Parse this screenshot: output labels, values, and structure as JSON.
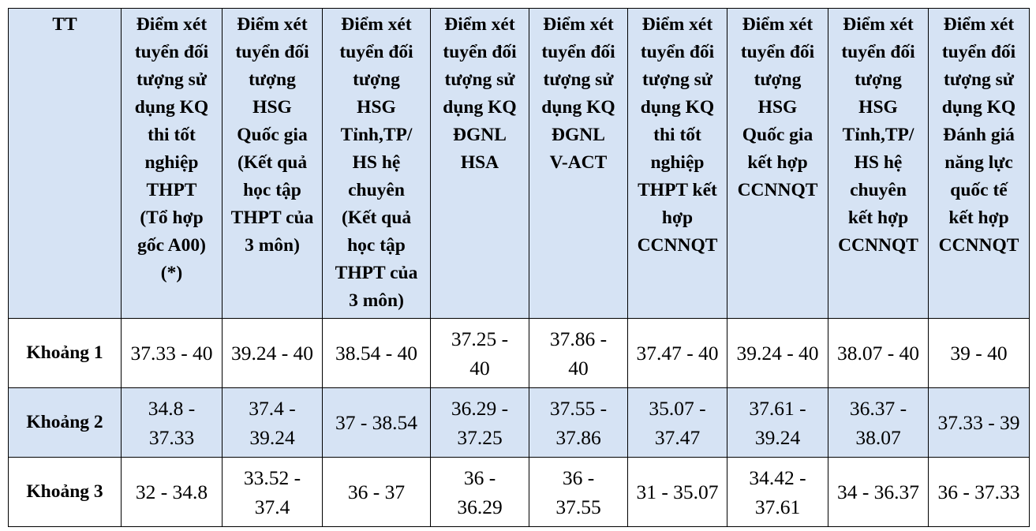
{
  "table": {
    "headers": [
      [
        "TT"
      ],
      [
        "Điểm xét",
        "tuyển đối",
        "tượng sử",
        "dụng KQ",
        "thi tốt",
        "nghiệp",
        "THPT",
        "(Tổ hợp",
        "gốc A00)",
        "(*)"
      ],
      [
        "Điểm xét",
        "tuyển đối",
        "tượng",
        "HSG",
        "Quốc gia",
        "(Kết quả",
        "học tập",
        "THPT của",
        "3 môn)"
      ],
      [
        "Điểm xét",
        "tuyển đối",
        "tượng",
        "HSG",
        "Tỉnh,TP/",
        "HS hệ",
        "chuyên",
        "(Kết quả",
        "học tập",
        "THPT của",
        "3 môn)"
      ],
      [
        "Điểm xét",
        "tuyển đối",
        "tượng sử",
        "dụng KQ",
        "ĐGNL",
        "HSA"
      ],
      [
        "Điểm xét",
        "tuyển đối",
        "tượng sử",
        "dụng KQ",
        "ĐGNL",
        "V-ACT"
      ],
      [
        "Điểm xét",
        "tuyển đối",
        "tượng sử",
        "dụng KQ",
        "thi tốt",
        "nghiệp",
        "THPT kết",
        "hợp",
        "CCNNQT"
      ],
      [
        "Điểm xét",
        "tuyển đối",
        "tượng",
        "HSG",
        "Quốc gia",
        "kết hợp",
        "CCNNQT"
      ],
      [
        "Điểm xét",
        "tuyển đối",
        "tượng",
        "HSG",
        "Tỉnh,TP/",
        "HS hệ",
        "chuyên",
        "kết hợp",
        "CCNNQT"
      ],
      [
        "Điểm xét",
        "tuyển đối",
        "tượng sử",
        "dụng KQ",
        "Đánh giá",
        "năng lực",
        "quốc tế",
        "kết hợp",
        "CCNNQT"
      ]
    ],
    "rows": [
      {
        "label": "Khoảng 1",
        "cells": [
          [
            "37.33 - 40"
          ],
          [
            "39.24 - 40"
          ],
          [
            "38.54 - 40"
          ],
          [
            "37.25 -",
            "40"
          ],
          [
            "37.86 -",
            "40"
          ],
          [
            "37.47 - 40"
          ],
          [
            "39.24 - 40"
          ],
          [
            "38.07 - 40"
          ],
          [
            "39 - 40"
          ]
        ]
      },
      {
        "label": "Khoảng 2",
        "cells": [
          [
            "34.8 -",
            "37.33"
          ],
          [
            "37.4 -",
            "39.24"
          ],
          [
            "37 - 38.54"
          ],
          [
            "36.29 -",
            "37.25"
          ],
          [
            "37.55 -",
            "37.86"
          ],
          [
            "35.07 -",
            "37.47"
          ],
          [
            "37.61 -",
            "39.24"
          ],
          [
            "36.37 -",
            "38.07"
          ],
          [
            "37.33 - 39"
          ]
        ]
      },
      {
        "label": "Khoảng 3",
        "cells": [
          [
            "32 - 34.8"
          ],
          [
            "33.52 -",
            "37.4"
          ],
          [
            "36 - 37"
          ],
          [
            "36 -",
            "36.29"
          ],
          [
            "36 -",
            "37.55"
          ],
          [
            "31 - 35.07"
          ],
          [
            "34.42 -",
            "37.61"
          ],
          [
            "34 - 36.37"
          ],
          [
            "36 - 37.33"
          ]
        ]
      }
    ]
  },
  "colors": {
    "header_bg": "#d6e3f4",
    "alt_row_bg": "#d6e3f4",
    "border": "#000000"
  }
}
